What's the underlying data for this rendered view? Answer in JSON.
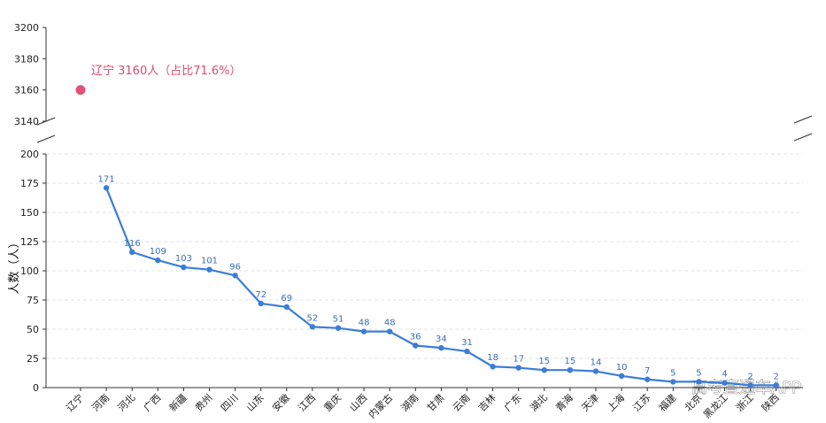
{
  "chart_data": {
    "type": "line",
    "ylabel": "人数（人）",
    "categories": [
      "辽宁",
      "河南",
      "河北",
      "广西",
      "新疆",
      "贵州",
      "四川",
      "山东",
      "安徽",
      "江西",
      "重庆",
      "山西",
      "内蒙古",
      "湖南",
      "甘肃",
      "云南",
      "吉林",
      "广东",
      "湖北",
      "青海",
      "天津",
      "上海",
      "江苏",
      "福建",
      "北京",
      "黑龙江",
      "浙江",
      "陕西"
    ],
    "outlier": {
      "category": "辽宁",
      "value": 3160,
      "label": "辽宁 3160人（占比71.6%）",
      "color": "#e0527a"
    },
    "series": [
      {
        "values": [
          null,
          171,
          116,
          109,
          103,
          101,
          96,
          72,
          69,
          52,
          51,
          48,
          48,
          36,
          34,
          31,
          18,
          17,
          15,
          15,
          14,
          10,
          7,
          5,
          5,
          4,
          2,
          2
        ],
        "color": "#3b7dd8"
      }
    ],
    "data_labels": [
      "",
      "171",
      "116",
      "109",
      "103",
      "101",
      "96",
      "72",
      "69",
      "52",
      "51",
      "48",
      "48",
      "36",
      "34",
      "31",
      "18",
      "17",
      "15",
      "15",
      "14",
      "10",
      "7",
      "5",
      "5",
      "4",
      "2",
      "2"
    ],
    "broken_axis": true,
    "upper_ylim": [
      3140,
      3200
    ],
    "upper_ticks": [
      "3140",
      "3160",
      "3180",
      "3200"
    ],
    "lower_ylim": [
      0,
      200
    ],
    "lower_ticks": [
      "0",
      "25",
      "50",
      "75",
      "100",
      "125",
      "150",
      "175",
      "200"
    ],
    "grid": true
  },
  "watermark": "高考直通车APP"
}
